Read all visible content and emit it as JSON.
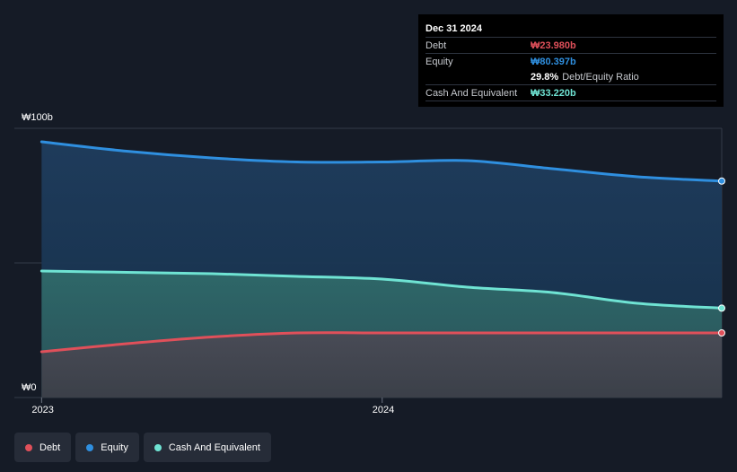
{
  "colors": {
    "debt": "#e0505a",
    "equity": "#2f8fdf",
    "cash": "#6fe3d3",
    "background": "#151b26",
    "grid": "#333b48"
  },
  "tooltip": {
    "date": "Dec 31 2024",
    "debt_label": "Debt",
    "debt_value": "₩23.980b",
    "equity_label": "Equity",
    "equity_value": "₩80.397b",
    "ratio_value": "29.8%",
    "ratio_label": "Debt/Equity Ratio",
    "cash_label": "Cash And Equivalent",
    "cash_value": "₩33.220b"
  },
  "legend": {
    "debt": "Debt",
    "equity": "Equity",
    "cash": "Cash And Equivalent"
  },
  "chart_data": {
    "type": "area",
    "x_ticks": [
      {
        "label": "2023",
        "x": 2023.0
      },
      {
        "label": "2024",
        "x": 2024.0
      }
    ],
    "y_ticks": [
      {
        "label": "₩100b",
        "y": 100
      },
      {
        "label": "₩0",
        "y": 0
      }
    ],
    "ylim": [
      0,
      100
    ],
    "xlim": [
      2022.92,
      2024.997
    ],
    "grid": true,
    "legend_position": "bottom-left",
    "series": [
      {
        "name": "Equity",
        "color": "#2f8fdf",
        "x": [
          2023.0,
          2023.25,
          2023.5,
          2023.75,
          2024.0,
          2024.25,
          2024.5,
          2024.75,
          2024.997
        ],
        "values": [
          95,
          91.5,
          89,
          87.5,
          87.5,
          88,
          85,
          82,
          80.4
        ]
      },
      {
        "name": "Cash And Equivalent",
        "color": "#6fe3d3",
        "x": [
          2023.0,
          2023.25,
          2023.5,
          2023.75,
          2024.0,
          2024.25,
          2024.5,
          2024.75,
          2024.997
        ],
        "values": [
          47,
          46.5,
          46,
          45,
          44,
          41,
          39,
          35,
          33.2
        ]
      },
      {
        "name": "Debt",
        "color": "#e0505a",
        "x": [
          2023.0,
          2023.25,
          2023.5,
          2023.75,
          2024.0,
          2024.25,
          2024.5,
          2024.75,
          2024.997
        ],
        "values": [
          17,
          20,
          22.5,
          24,
          24,
          24,
          24,
          24,
          24
        ]
      }
    ]
  }
}
